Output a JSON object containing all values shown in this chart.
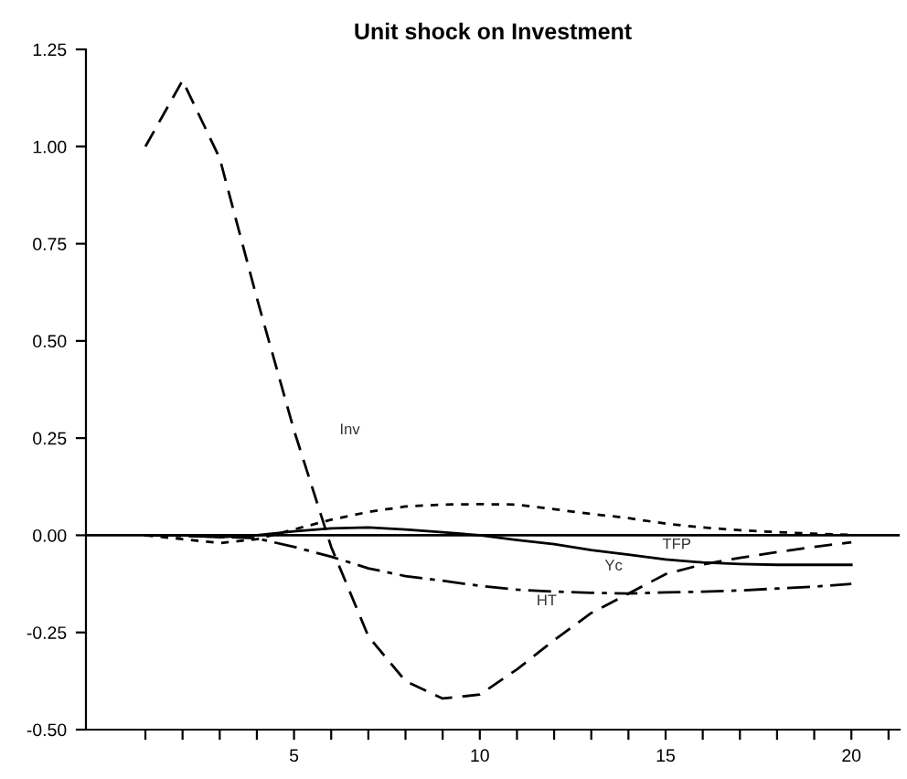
{
  "chart_data": {
    "type": "line",
    "title": "Unit shock on Investment",
    "x": [
      1,
      2,
      3,
      4,
      5,
      6,
      7,
      8,
      9,
      10,
      11,
      12,
      13,
      14,
      15,
      16,
      17,
      18,
      19,
      20
    ],
    "series": [
      {
        "color": "#000000",
        "line_style": "dashed",
        "values": [
          1.0,
          1.17,
          0.97,
          0.61,
          0.27,
          -0.03,
          -0.26,
          -0.375,
          -0.42,
          -0.41,
          -0.345,
          -0.27,
          -0.2,
          -0.15,
          -0.1,
          -0.075,
          -0.058,
          -0.043,
          -0.03,
          -0.018
        ]
      },
      {
        "color": "#000000",
        "line_style": "solid",
        "values": [
          0.0,
          0.0,
          -0.005,
          0.0,
          0.01,
          0.018,
          0.02,
          0.015,
          0.008,
          0.0,
          -0.012,
          -0.023,
          -0.038,
          -0.05,
          -0.062,
          -0.07,
          -0.074,
          -0.076,
          -0.076,
          -0.076
        ]
      },
      {
        "color": "#000000",
        "line_style": "dotted",
        "values": [
          0.0,
          -0.01,
          -0.02,
          -0.01,
          0.015,
          0.04,
          0.06,
          0.074,
          0.079,
          0.08,
          0.079,
          0.067,
          0.055,
          0.044,
          0.03,
          0.02,
          0.013,
          0.008,
          0.004,
          0.001
        ]
      },
      {
        "color": "#000000",
        "line_style": "dashdot",
        "values": [
          0.0,
          -0.002,
          -0.004,
          -0.008,
          -0.03,
          -0.055,
          -0.085,
          -0.105,
          -0.117,
          -0.13,
          -0.14,
          -0.145,
          -0.148,
          -0.15,
          -0.147,
          -0.145,
          -0.142,
          -0.137,
          -0.132,
          -0.125
        ]
      }
    ],
    "annotations": [
      "Inv",
      "TFP",
      "Yc",
      "HT"
    ],
    "ref_lines": [
      {
        "axis": "y",
        "value": 0,
        "color": "#000000",
        "line_style": "solid"
      }
    ],
    "xlim": [
      -0.6,
      21.3
    ],
    "xticks": [
      {
        "value": 1,
        "label": null
      },
      {
        "value": 2,
        "label": null
      },
      {
        "value": 3,
        "label": null
      },
      {
        "value": 4,
        "label": null
      },
      5,
      {
        "value": 6,
        "label": null
      },
      {
        "value": 7,
        "label": null
      },
      {
        "value": 8,
        "label": null
      },
      {
        "value": 9,
        "label": null
      },
      10,
      {
        "value": 11,
        "label": null
      },
      {
        "value": 12,
        "label": null
      },
      {
        "value": 13,
        "label": null
      },
      {
        "value": 14,
        "label": null
      },
      15,
      {
        "value": 16,
        "label": null
      },
      {
        "value": 17,
        "label": null
      },
      {
        "value": 18,
        "label": null
      },
      {
        "value": 19,
        "label": null
      },
      20,
      {
        "value": 21,
        "label": null
      }
    ],
    "ylim": [
      -0.5,
      1.25
    ],
    "yticks": [
      {
        "value": -0.5,
        "label": "-0.50"
      },
      {
        "value": -0.25,
        "label": "-0.25"
      },
      {
        "value": 0,
        "label": "0.00"
      },
      {
        "value": 0.25,
        "label": "0.25"
      },
      {
        "value": 0.5,
        "label": "0.50"
      },
      {
        "value": 0.75,
        "label": "0.75"
      },
      {
        "value": 1.0,
        "label": "1.00"
      },
      {
        "value": 1.25,
        "label": "1.25"
      }
    ],
    "grid": false,
    "legend": false
  }
}
